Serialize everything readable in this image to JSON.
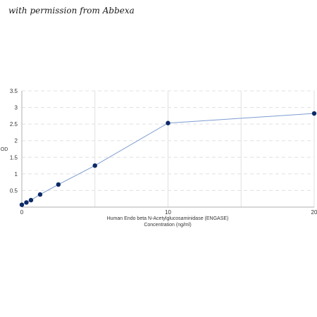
{
  "watermark": "with permission from Abbexa",
  "chart_data": {
    "type": "scatter",
    "title": "",
    "xlabel_line1": "Human Endo beta N-Acetylglucosaminidase (ENGASE)",
    "xlabel_line2": "Concentration (ng/ml)",
    "ylabel": "OD",
    "xlim": [
      0,
      20
    ],
    "ylim": [
      0,
      3.5
    ],
    "x_ticks": [
      0,
      10,
      20
    ],
    "y_ticks": [
      0.5,
      1,
      1.5,
      2,
      2.5,
      3,
      3.5
    ],
    "x_tick_labels": [
      "0",
      "10",
      "20"
    ],
    "y_tick_labels": [
      "0.5",
      "1",
      "1.5",
      "2",
      "2.5",
      "3",
      "3.5"
    ],
    "grid": {
      "vertical": true,
      "horizontal_dashed": true
    },
    "series": [
      {
        "x": [
          0,
          0.3125,
          0.625,
          1.25,
          2.5,
          5,
          10,
          20
        ],
        "y": [
          0.07,
          0.14,
          0.21,
          0.38,
          0.68,
          1.25,
          2.53,
          2.82
        ]
      }
    ],
    "colors": {
      "point": "#0d2a66",
      "line": "#7d9cd0",
      "grid": "#e0e0e0",
      "axis": "#b0b0b0"
    }
  }
}
